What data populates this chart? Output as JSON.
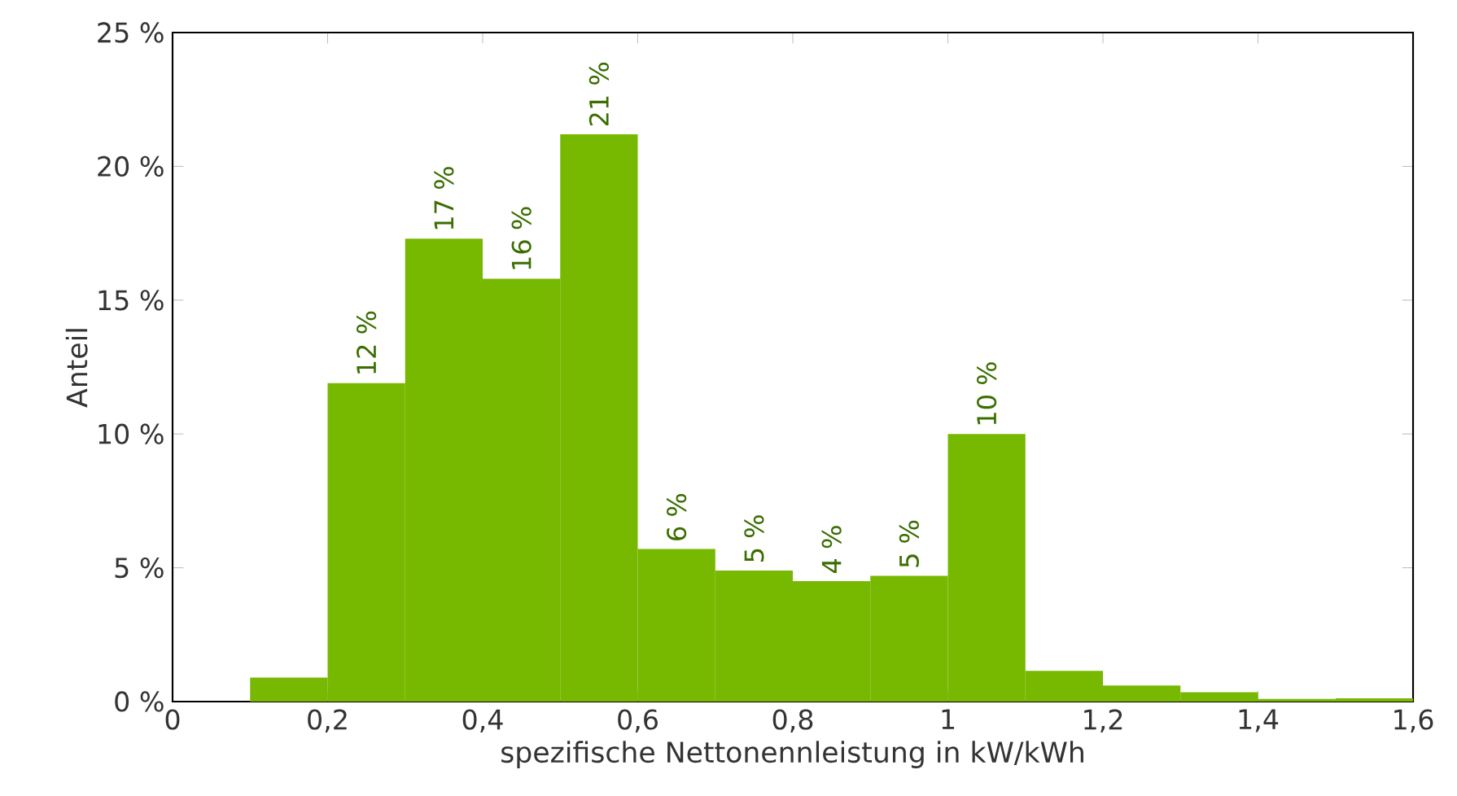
{
  "chart_data": {
    "type": "histogram",
    "xlabel": "spezifische Nettonennleistung in kW/kWh",
    "ylabel": "Anteil",
    "bins": [
      0.1,
      0.2,
      0.3,
      0.4,
      0.5,
      0.6,
      0.7,
      0.8,
      0.9,
      1.0,
      1.1,
      1.2,
      1.3,
      1.4,
      1.5,
      1.6
    ],
    "values": [
      0.9,
      11.9,
      17.3,
      15.8,
      21.2,
      5.7,
      4.9,
      4.5,
      4.7,
      10.0,
      1.15,
      0.6,
      0.35,
      0.1,
      0.12
    ],
    "value_labels": [
      null,
      "12 %",
      "17 %",
      "16 %",
      "21 %",
      "6 %",
      "5 %",
      "4 %",
      "5 %",
      "10 %",
      null,
      null,
      null,
      null,
      null
    ],
    "color": "#77b800",
    "xlim": [
      0,
      1.6
    ],
    "ylim": [
      0,
      25
    ],
    "xticks": [
      0,
      {
        "value": 0.2,
        "label": "0,2"
      },
      {
        "value": 0.4,
        "label": "0,4"
      },
      {
        "value": 0.6,
        "label": "0,6"
      },
      {
        "value": 0.8,
        "label": "0,8"
      },
      1,
      {
        "value": 1.2,
        "label": "1,2"
      },
      {
        "value": 1.4,
        "label": "1,4"
      },
      {
        "value": 1.6,
        "label": "1,6"
      }
    ],
    "yticks": [
      {
        "value": 0,
        "label": "0 %"
      },
      {
        "value": 5,
        "label": "5 %"
      },
      {
        "value": 10,
        "label": "10 %"
      },
      {
        "value": 15,
        "label": "15 %"
      },
      {
        "value": 20,
        "label": "20 %"
      },
      {
        "value": 25,
        "label": "25 %"
      }
    ],
    "grid": false
  }
}
